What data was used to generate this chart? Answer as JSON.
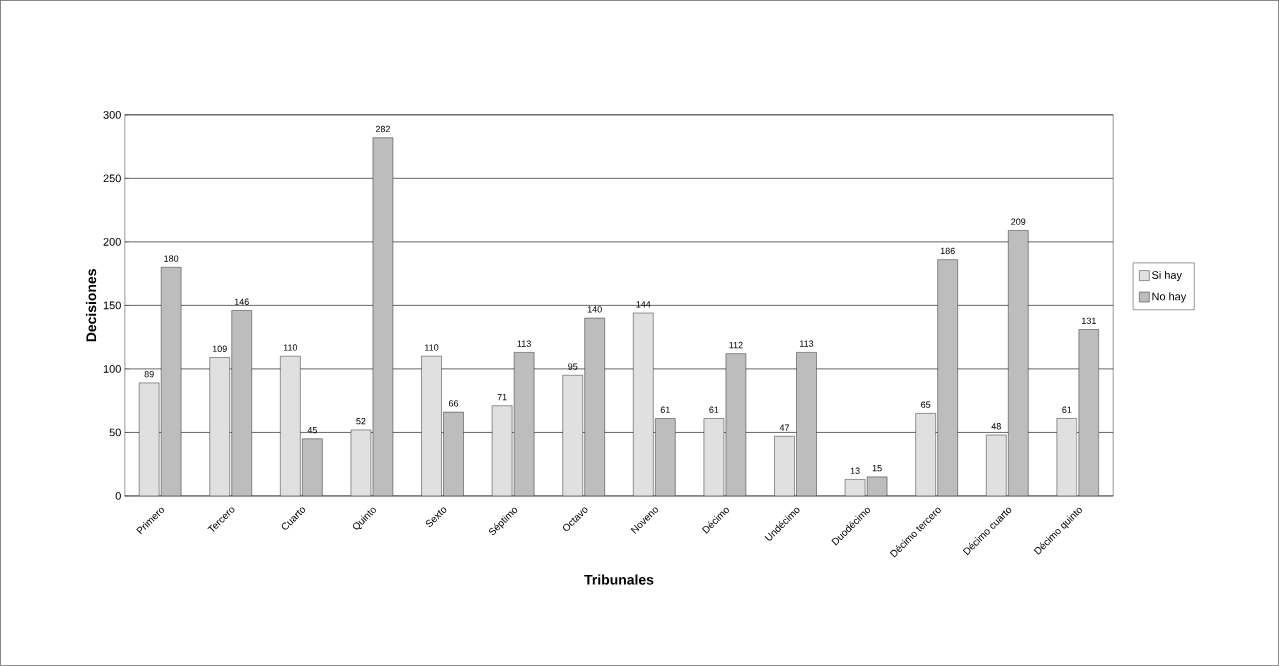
{
  "chart_data": {
    "type": "bar",
    "xlabel": "Tribunales",
    "ylabel": "Decisiones",
    "categories": [
      "Primero",
      "Tercero",
      "Cuarto",
      "Quinto",
      "Sexto",
      "Séptimo",
      "Octavo",
      "Noveno",
      "Décimo",
      "Undécimo",
      "Duodécimo",
      "Décimo tercero",
      "Décimo cuarto",
      "Décimo quinto"
    ],
    "series": [
      {
        "name": "Si hay",
        "color": "#e0e0e0",
        "values": [
          89,
          109,
          110,
          52,
          110,
          71,
          95,
          144,
          61,
          47,
          13,
          65,
          48,
          61
        ]
      },
      {
        "name": "No hay",
        "color": "#bdbdbd",
        "values": [
          180,
          146,
          45,
          282,
          66,
          113,
          140,
          61,
          112,
          113,
          15,
          186,
          209,
          131
        ]
      }
    ],
    "ylim": [
      0,
      300
    ],
    "yticks": [
      0,
      50,
      100,
      150,
      200,
      250,
      300
    ],
    "grid": "y",
    "legend": "right",
    "data_labels": true
  }
}
